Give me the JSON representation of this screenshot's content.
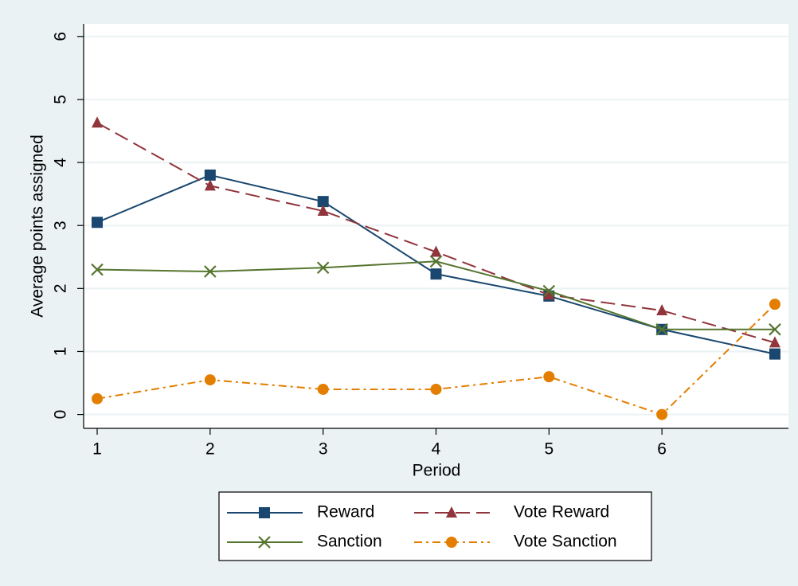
{
  "chart_data": {
    "type": "line",
    "x_label": "Period",
    "y_label": "Average points assigned",
    "x": [
      1,
      2,
      3,
      4,
      5,
      6,
      7
    ],
    "xlim": [
      0.88,
      7.12
    ],
    "xticks": [
      1,
      2,
      3,
      4,
      5,
      6
    ],
    "ylim": [
      -0.22,
      6.2
    ],
    "yticks": [
      0,
      1,
      2,
      3,
      4,
      5,
      6
    ],
    "grid": true,
    "legend": "bottom",
    "series": [
      {
        "name": "Reward",
        "color": "#1a476f",
        "marker": "square",
        "line": "solid",
        "values": [
          3.05,
          3.8,
          3.38,
          2.23,
          1.88,
          1.35,
          0.96
        ]
      },
      {
        "name": "Vote Reward",
        "color": "#90353b",
        "marker": "triangle",
        "line": "longdash",
        "values": [
          4.63,
          3.63,
          3.23,
          2.58,
          1.9,
          1.65,
          1.14
        ]
      },
      {
        "name": "Sanction",
        "color": "#55752f",
        "marker": "x",
        "line": "solid",
        "values": [
          2.3,
          2.27,
          2.33,
          2.43,
          1.96,
          1.35,
          1.35
        ]
      },
      {
        "name": "Vote Sanction",
        "color": "#e37e00",
        "marker": "circle",
        "line": "dashdot",
        "values": [
          0.25,
          0.55,
          0.4,
          0.4,
          0.6,
          0.0,
          1.75
        ]
      }
    ]
  }
}
